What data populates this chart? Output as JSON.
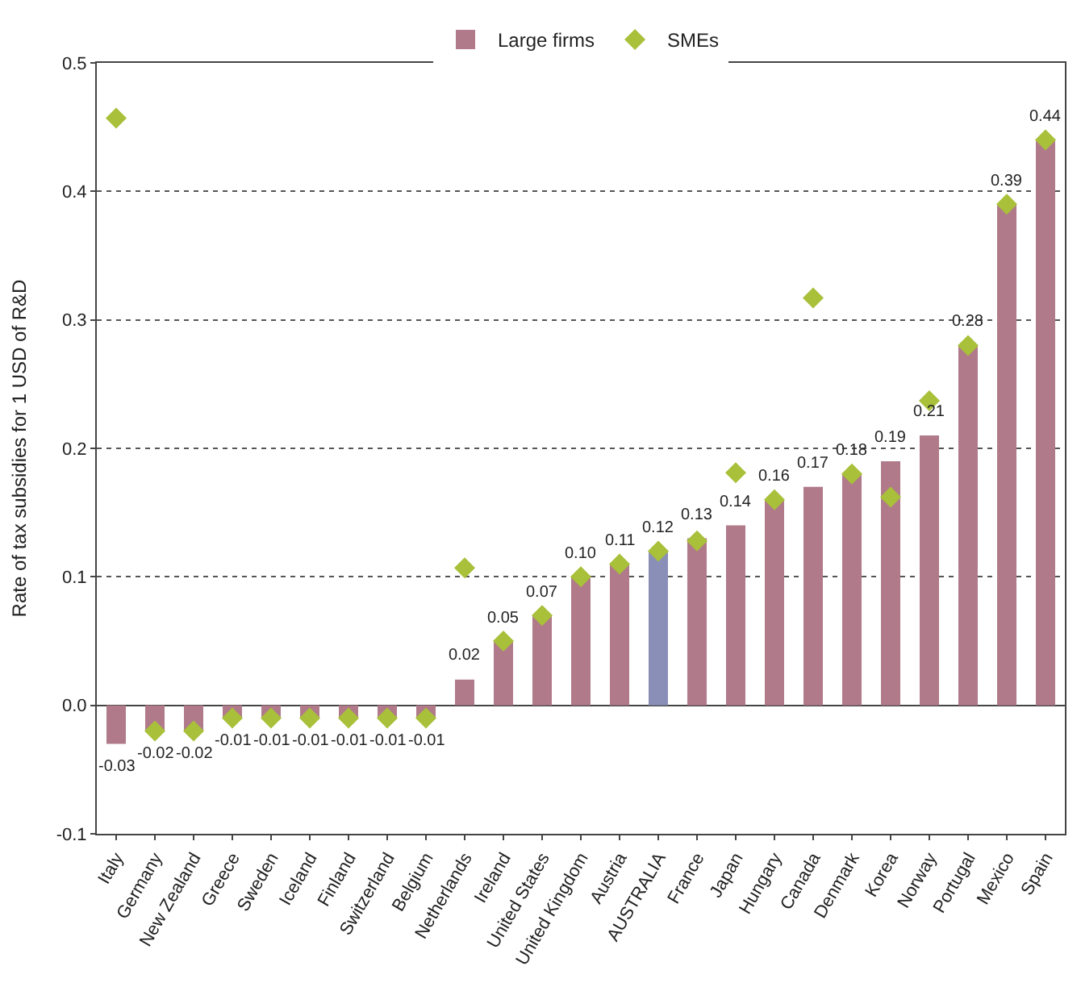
{
  "chart_data": {
    "type": "bar",
    "ylabel": "Rate of tax subsidies for 1 USD of R&D",
    "categories": [
      "Italy",
      "Germany",
      "New Zealand",
      "Greece",
      "Sweden",
      "Iceland",
      "Finland",
      "Switzerland",
      "Belgium",
      "Netherlands",
      "Ireland",
      "United States",
      "United Kingdom",
      "Austria",
      "AUSTRALIA",
      "France",
      "Japan",
      "Hungary",
      "Canada",
      "Denmark",
      "Korea",
      "Norway",
      "Portugal",
      "Mexico",
      "Spain"
    ],
    "series": [
      {
        "name": "Large firms",
        "color": "#b07a8a",
        "colors": [
          "#b07a8a",
          "#b07a8a",
          "#b07a8a",
          "#b07a8a",
          "#b07a8a",
          "#b07a8a",
          "#b07a8a",
          "#b07a8a",
          "#b07a8a",
          "#b07a8a",
          "#b07a8a",
          "#b07a8a",
          "#b07a8a",
          "#b07a8a",
          "#8a8fb8",
          "#b07a8a",
          "#b07a8a",
          "#b07a8a",
          "#b07a8a",
          "#b07a8a",
          "#b07a8a",
          "#b07a8a",
          "#b07a8a",
          "#b07a8a",
          "#b07a8a"
        ],
        "values": [
          -0.03,
          -0.02,
          -0.02,
          -0.01,
          -0.01,
          -0.01,
          -0.01,
          -0.01,
          -0.01,
          0.02,
          0.05,
          0.07,
          0.1,
          0.11,
          0.12,
          0.13,
          0.14,
          0.16,
          0.17,
          0.18,
          0.19,
          0.21,
          0.28,
          0.39,
          0.44
        ],
        "value_labels": [
          "-0.03",
          "-0.02",
          "-0.02",
          "-0.01",
          "-0.01",
          "-0.01",
          "-0.01",
          "-0.01",
          "-0.01",
          "0.02",
          "0.05",
          "0.07",
          "0.10",
          "0.11",
          "0.12",
          "0.13",
          "0.14",
          "0.16",
          "0.17",
          "0.18",
          "0.19",
          "0.21",
          "0.28",
          "0.39",
          "0.44"
        ]
      },
      {
        "name": "SMEs",
        "type": "scatter",
        "marker": "diamond",
        "color": "#a8c03a",
        "values": [
          0.457,
          -0.02,
          -0.02,
          -0.01,
          -0.01,
          -0.01,
          -0.01,
          -0.01,
          -0.01,
          0.107,
          0.05,
          0.07,
          0.1,
          0.11,
          0.12,
          0.128,
          0.181,
          0.16,
          0.317,
          0.18,
          0.162,
          0.237,
          0.28,
          0.39,
          0.44
        ]
      }
    ],
    "ylim": [
      -0.1,
      0.5
    ],
    "yticks": [
      {
        "value": -0.1,
        "label": "-0.1"
      },
      {
        "value": 0,
        "label": "0.0"
      },
      {
        "value": 0.1,
        "label": "0.1"
      },
      {
        "value": 0.2,
        "label": "0.2"
      },
      {
        "value": 0.3,
        "label": "0.3"
      },
      {
        "value": 0.4,
        "label": "0.4"
      },
      {
        "value": 0.5,
        "label": "0.5"
      }
    ],
    "grid": "y",
    "legend": "top"
  }
}
